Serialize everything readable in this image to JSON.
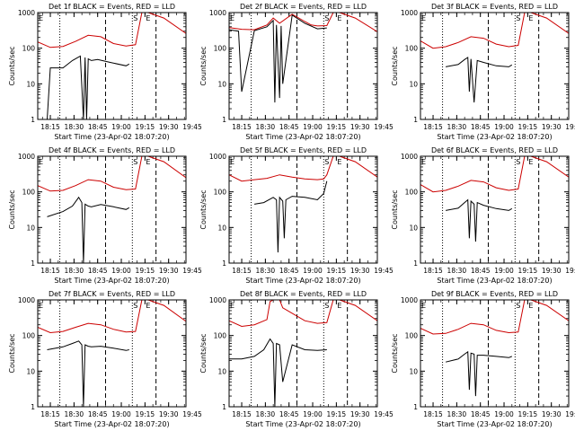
{
  "chart_data": [
    {
      "type": "line",
      "title": "Det 1f BLACK = Events, RED = LLD",
      "xlabel": "Start Time (23-Apr-02 18:07:20)",
      "ylabel": "Counts/sec",
      "yscale": "log",
      "ylim": [
        1,
        1000
      ],
      "yticks": [
        "1",
        "10",
        "100",
        "1000"
      ],
      "xticks": [
        "18:15",
        "18:30",
        "18:45",
        "19:00",
        "19:15",
        "19:30",
        "19:45"
      ],
      "markers": [
        "E",
        "S",
        "E"
      ],
      "series": [
        {
          "color": "#cc0000",
          "x": [
            0,
            8,
            16,
            24,
            32,
            40,
            48,
            56,
            62,
            66,
            70,
            80,
            94
          ],
          "y": [
            150,
            105,
            112,
            155,
            230,
            210,
            135,
            115,
            125,
            1000,
            1000,
            700,
            260
          ]
        },
        {
          "color": "#000000",
          "x": [
            6,
            8,
            16,
            22,
            27,
            29,
            30,
            31,
            32,
            34,
            38,
            46,
            56,
            58
          ],
          "y": [
            1,
            28,
            28,
            45,
            60,
            1,
            55,
            1,
            50,
            45,
            48,
            40,
            32,
            36
          ]
        }
      ]
    },
    {
      "type": "line",
      "title": "Det 2f BLACK = Events, RED = LLD",
      "xlabel": "Start Time (23-Apr-02 18:07:20)",
      "ylabel": "Counts/sec",
      "yscale": "log",
      "ylim": [
        1,
        1000
      ],
      "yticks": [
        "1",
        "10",
        "100",
        "1000"
      ],
      "xticks": [
        "18:15",
        "18:30",
        "18:45",
        "19:00",
        "19:15",
        "19:30",
        "19:45"
      ],
      "markers": [
        "E",
        "S",
        "E"
      ],
      "series": [
        {
          "color": "#cc0000",
          "x": [
            0,
            8,
            16,
            24,
            28,
            32,
            40,
            48,
            52,
            56,
            62,
            66,
            70,
            80,
            94
          ],
          "y": [
            380,
            340,
            330,
            450,
            700,
            500,
            900,
            560,
            450,
            420,
            430,
            1000,
            1000,
            700,
            290
          ]
        },
        {
          "color": "#000000",
          "x": [
            0,
            6,
            8,
            16,
            24,
            28,
            29,
            30,
            32,
            33,
            34,
            40,
            48,
            56,
            62
          ],
          "y": [
            330,
            300,
            6,
            310,
            400,
            600,
            3,
            450,
            4,
            420,
            10,
            850,
            500,
            350,
            370
          ]
        }
      ]
    },
    {
      "type": "line",
      "title": "Det 3f BLACK = Events, RED = LLD",
      "xlabel": "Start Time (23-Apr-02 18:07:20)",
      "ylabel": "Counts/sec",
      "yscale": "log",
      "ylim": [
        1,
        1000
      ],
      "yticks": [
        "1",
        "10",
        "100",
        "1000"
      ],
      "xticks": [
        "18:15",
        "18:30",
        "18:45",
        "19:00",
        "19:15",
        "19:30",
        "19:45"
      ],
      "markers": [
        "E",
        "S",
        "E"
      ],
      "series": [
        {
          "color": "#cc0000",
          "x": [
            0,
            8,
            16,
            24,
            32,
            40,
            48,
            56,
            62,
            66,
            70,
            80,
            94
          ],
          "y": [
            160,
            100,
            110,
            145,
            210,
            190,
            130,
            110,
            120,
            1000,
            1000,
            700,
            260
          ]
        },
        {
          "color": "#000000",
          "x": [
            16,
            24,
            28,
            30,
            31,
            32,
            34,
            36,
            40,
            48,
            56,
            58
          ],
          "y": [
            30,
            35,
            48,
            55,
            6,
            50,
            3,
            45,
            40,
            32,
            30,
            34
          ]
        }
      ]
    },
    {
      "type": "line",
      "title": "Det 4f BLACK = Events, RED = LLD",
      "xlabel": "Start Time (23-Apr-02 18:07:20)",
      "ylabel": "Counts/sec",
      "yscale": "log",
      "ylim": [
        1,
        1000
      ],
      "yticks": [
        "1",
        "10",
        "100",
        "1000"
      ],
      "xticks": [
        "18:15",
        "18:30",
        "18:45",
        "19:00",
        "19:15",
        "19:30",
        "19:45"
      ],
      "markers": [
        "E",
        "S",
        "E"
      ],
      "series": [
        {
          "color": "#cc0000",
          "x": [
            0,
            8,
            16,
            24,
            32,
            40,
            48,
            56,
            62,
            66,
            70,
            80,
            94
          ],
          "y": [
            150,
            105,
            110,
            150,
            220,
            200,
            135,
            115,
            120,
            1000,
            1000,
            700,
            250
          ]
        },
        {
          "color": "#000000",
          "x": [
            6,
            16,
            22,
            26,
            28,
            29,
            30,
            32,
            34,
            40,
            48,
            56,
            58
          ],
          "y": [
            20,
            28,
            40,
            70,
            50,
            1,
            45,
            40,
            38,
            44,
            38,
            32,
            36
          ]
        }
      ]
    },
    {
      "type": "line",
      "title": "Det 5f BLACK = Events, RED = LLD",
      "xlabel": "Start Time (23-Apr-02 18:07:20)",
      "ylabel": "Counts/sec",
      "yscale": "log",
      "ylim": [
        1,
        1000
      ],
      "yticks": [
        "1",
        "10",
        "100",
        "1000"
      ],
      "xticks": [
        "18:15",
        "18:30",
        "18:45",
        "19:00",
        "19:15",
        "19:30",
        "19:45"
      ],
      "markers": [
        "E",
        "S",
        "E"
      ],
      "series": [
        {
          "color": "#cc0000",
          "x": [
            0,
            8,
            16,
            24,
            32,
            40,
            48,
            56,
            60,
            62,
            66,
            70,
            80,
            94
          ],
          "y": [
            300,
            200,
            220,
            240,
            300,
            260,
            230,
            220,
            230,
            300,
            1000,
            1000,
            700,
            260
          ]
        },
        {
          "color": "#000000",
          "x": [
            16,
            22,
            28,
            30,
            31,
            32,
            34,
            35,
            36,
            40,
            48,
            56,
            60,
            62
          ],
          "y": [
            45,
            50,
            70,
            60,
            2,
            70,
            55,
            5,
            60,
            75,
            70,
            60,
            90,
            200
          ]
        }
      ]
    },
    {
      "type": "line",
      "title": "Det 6f BLACK = Events, RED = LLD",
      "xlabel": "Start Time (23-Apr-02 18:07:20)",
      "ylabel": "Counts/sec",
      "yscale": "log",
      "ylim": [
        1,
        1000
      ],
      "yticks": [
        "1",
        "10",
        "100",
        "1000"
      ],
      "xticks": [
        "18:15",
        "18:30",
        "18:45",
        "19:00",
        "19:15",
        "19:30",
        "19:45"
      ],
      "markers": [
        "E",
        "S",
        "E"
      ],
      "series": [
        {
          "color": "#cc0000",
          "x": [
            0,
            8,
            16,
            24,
            32,
            40,
            48,
            56,
            62,
            66,
            70,
            80,
            94
          ],
          "y": [
            160,
            100,
            110,
            145,
            210,
            190,
            130,
            110,
            120,
            1000,
            1000,
            700,
            260
          ]
        },
        {
          "color": "#000000",
          "x": [
            16,
            24,
            28,
            30,
            31,
            32,
            34,
            35,
            36,
            40,
            48,
            56,
            58
          ],
          "y": [
            30,
            35,
            50,
            60,
            5,
            55,
            45,
            4,
            50,
            42,
            34,
            30,
            34
          ]
        }
      ]
    },
    {
      "type": "line",
      "title": "Det 7f BLACK = Events, RED = LLD",
      "xlabel": "Start Time (23-Apr-02 18:07:20)",
      "ylabel": "Counts/sec",
      "yscale": "log",
      "ylim": [
        1,
        1000
      ],
      "yticks": [
        "1",
        "10",
        "100",
        "1000"
      ],
      "xticks": [
        "18:15",
        "18:30",
        "18:45",
        "19:00",
        "19:15",
        "19:30",
        "19:45"
      ],
      "markers": [
        "E",
        "S",
        "E"
      ],
      "series": [
        {
          "color": "#cc0000",
          "x": [
            0,
            8,
            16,
            24,
            32,
            40,
            48,
            56,
            62,
            66,
            70,
            80,
            94
          ],
          "y": [
            170,
            120,
            130,
            170,
            220,
            200,
            150,
            125,
            130,
            1000,
            1000,
            700,
            250
          ]
        },
        {
          "color": "#000000",
          "x": [
            6,
            16,
            22,
            26,
            28,
            29,
            30,
            32,
            34,
            40,
            48,
            56,
            58
          ],
          "y": [
            40,
            48,
            60,
            70,
            55,
            1,
            55,
            50,
            48,
            50,
            44,
            38,
            40
          ]
        }
      ]
    },
    {
      "type": "line",
      "title": "Det 8f BLACK = Events, RED = LLD",
      "xlabel": "Start Time (23-Apr-02 18:07:20)",
      "ylabel": "Counts/sec",
      "yscale": "log",
      "ylim": [
        1,
        1000
      ],
      "yticks": [
        "1",
        "10",
        "100",
        "1000"
      ],
      "xticks": [
        "18:15",
        "18:30",
        "18:45",
        "19:00",
        "19:15",
        "19:30",
        "19:45"
      ],
      "markers": [
        "E",
        "S",
        "E"
      ],
      "series": [
        {
          "color": "#cc0000",
          "x": [
            0,
            8,
            16,
            24,
            26,
            28,
            32,
            34,
            40,
            48,
            56,
            62,
            66,
            70,
            80,
            94
          ],
          "y": [
            260,
            180,
            200,
            280,
            900,
            1000,
            1000,
            600,
            420,
            260,
            220,
            230,
            1000,
            1000,
            700,
            260
          ]
        },
        {
          "color": "#000000",
          "x": [
            0,
            8,
            16,
            22,
            26,
            28,
            29,
            30,
            32,
            34,
            40,
            48,
            56,
            62
          ],
          "y": [
            22,
            22,
            26,
            40,
            80,
            60,
            1,
            60,
            55,
            5,
            55,
            40,
            38,
            40
          ]
        }
      ]
    },
    {
      "type": "line",
      "title": "Det 9f BLACK = Events, RED = LLD",
      "xlabel": "Start Time (23-Apr-02 18:07:20)",
      "ylabel": "Counts/sec",
      "yscale": "log",
      "ylim": [
        1,
        1000
      ],
      "yticks": [
        "1",
        "10",
        "100",
        "1000"
      ],
      "xticks": [
        "18:15",
        "18:30",
        "18:45",
        "19:00",
        "19:15",
        "19:30",
        "19:45"
      ],
      "markers": [
        "E",
        "S",
        "E"
      ],
      "series": [
        {
          "color": "#cc0000",
          "x": [
            0,
            8,
            16,
            24,
            32,
            40,
            48,
            56,
            62,
            66,
            70,
            80,
            94
          ],
          "y": [
            160,
            110,
            115,
            150,
            220,
            200,
            140,
            120,
            125,
            1000,
            1000,
            700,
            260
          ]
        },
        {
          "color": "#000000",
          "x": [
            16,
            24,
            28,
            30,
            31,
            32,
            34,
            35,
            36,
            40,
            48,
            56,
            58
          ],
          "y": [
            18,
            22,
            30,
            35,
            3,
            32,
            30,
            2,
            28,
            28,
            26,
            24,
            26
          ]
        }
      ]
    }
  ]
}
